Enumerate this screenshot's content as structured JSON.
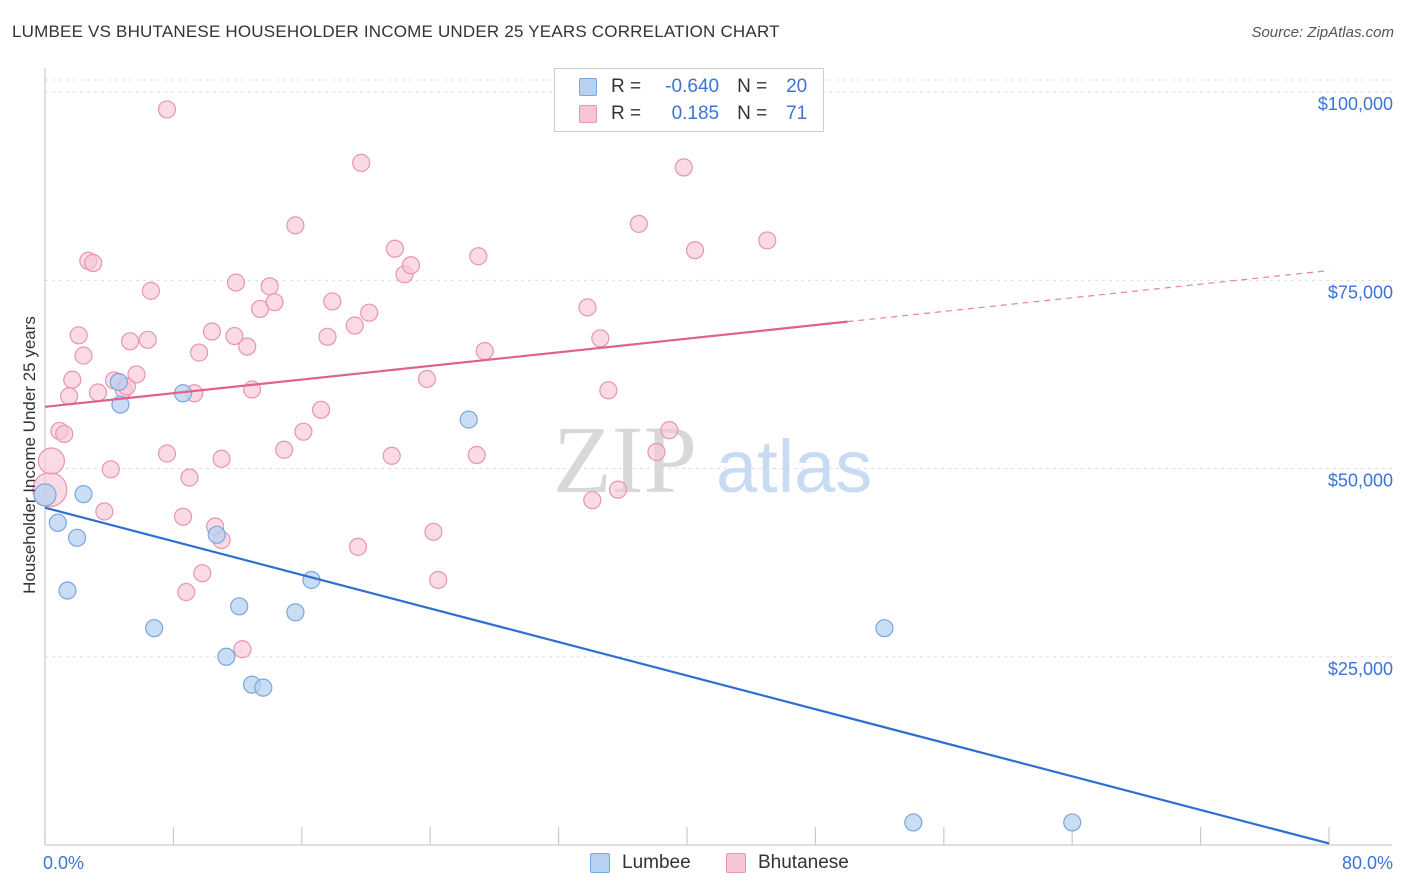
{
  "title": "LUMBEE VS BHUTANESE HOUSEHOLDER INCOME UNDER 25 YEARS CORRELATION CHART",
  "source": "Source: ZipAtlas.com",
  "watermark": {
    "zip": "ZIP",
    "atlas": "atlas"
  },
  "legend": {
    "r_label": "R =",
    "n_label": "N =",
    "rows": [
      {
        "series": "Lumbee",
        "r": "-0.640",
        "n": "20"
      },
      {
        "series": "Bhutanese",
        "r": "0.185",
        "n": "71"
      }
    ]
  },
  "colors": {
    "lumbee_fill": "#b7d1f2",
    "lumbee_stroke": "#7aa6e0",
    "lumbee_line": "#2f6fcf",
    "bhutanese_fill": "#f7c6d6",
    "bhutanese_stroke": "#e795b2",
    "bhutanese_line": "#e0608e",
    "axis_label": "#3b74d6",
    "grid": "#dddddd"
  },
  "chart_data": {
    "type": "scatter",
    "ylabel": "Householder Income Under 25 years",
    "xlim": [
      0,
      80
    ],
    "ylim": [
      0,
      104000
    ],
    "x_tick_labels": [
      "0.0%",
      "80.0%"
    ],
    "y_ticks": [
      25000,
      50000,
      75000,
      100000
    ],
    "y_tick_labels": [
      "$25,000",
      "$50,000",
      "$75,000",
      "$100,000"
    ],
    "grid": "horizontal dashed",
    "series": [
      {
        "name": "Lumbee",
        "points": [
          [
            0.0,
            46500
          ],
          [
            0.8,
            42800
          ],
          [
            1.4,
            33800
          ],
          [
            2.0,
            40800
          ],
          [
            2.4,
            46600
          ],
          [
            4.6,
            61500
          ],
          [
            4.7,
            58500
          ],
          [
            6.8,
            28800
          ],
          [
            8.6,
            60000
          ],
          [
            10.7,
            41200
          ],
          [
            11.3,
            25000
          ],
          [
            12.1,
            31700
          ],
          [
            12.9,
            21300
          ],
          [
            13.6,
            20900
          ],
          [
            15.6,
            30900
          ],
          [
            16.6,
            35200
          ],
          [
            26.4,
            56500
          ],
          [
            52.3,
            28800
          ],
          [
            54.1,
            3000
          ],
          [
            64.0,
            3000
          ]
        ],
        "trend": {
          "x": [
            0,
            80
          ],
          "y": [
            44800,
            200
          ]
        }
      },
      {
        "name": "Bhutanese",
        "points": [
          [
            0.3,
            47200
          ],
          [
            0.4,
            51000
          ],
          [
            0.9,
            55000
          ],
          [
            1.2,
            54600
          ],
          [
            1.5,
            59600
          ],
          [
            1.7,
            61800
          ],
          [
            2.1,
            67700
          ],
          [
            2.4,
            65000
          ],
          [
            2.7,
            77600
          ],
          [
            3.0,
            77300
          ],
          [
            3.3,
            60100
          ],
          [
            3.7,
            44300
          ],
          [
            4.1,
            49900
          ],
          [
            4.3,
            61700
          ],
          [
            4.9,
            60500
          ],
          [
            5.1,
            60900
          ],
          [
            5.3,
            66900
          ],
          [
            5.7,
            62500
          ],
          [
            6.4,
            67100
          ],
          [
            6.6,
            73600
          ],
          [
            7.6,
            97700
          ],
          [
            7.6,
            52000
          ],
          [
            8.6,
            43600
          ],
          [
            8.8,
            33600
          ],
          [
            9.0,
            48800
          ],
          [
            9.3,
            60000
          ],
          [
            9.6,
            65400
          ],
          [
            9.8,
            36100
          ],
          [
            10.4,
            68200
          ],
          [
            10.6,
            42300
          ],
          [
            11.0,
            51300
          ],
          [
            11.0,
            40500
          ],
          [
            11.8,
            67600
          ],
          [
            11.9,
            74700
          ],
          [
            12.3,
            26000
          ],
          [
            12.6,
            66200
          ],
          [
            12.9,
            60500
          ],
          [
            13.4,
            71200
          ],
          [
            14.0,
            74200
          ],
          [
            14.3,
            72100
          ],
          [
            14.9,
            52500
          ],
          [
            15.6,
            82300
          ],
          [
            16.1,
            54900
          ],
          [
            17.2,
            57800
          ],
          [
            17.6,
            67500
          ],
          [
            17.9,
            72200
          ],
          [
            19.3,
            69000
          ],
          [
            19.5,
            39600
          ],
          [
            19.7,
            90600
          ],
          [
            20.2,
            70700
          ],
          [
            21.6,
            51700
          ],
          [
            21.8,
            79200
          ],
          [
            22.4,
            75800
          ],
          [
            22.8,
            77000
          ],
          [
            23.8,
            61900
          ],
          [
            24.2,
            41600
          ],
          [
            24.5,
            35200
          ],
          [
            26.9,
            51800
          ],
          [
            27.0,
            78200
          ],
          [
            27.4,
            65600
          ],
          [
            33.8,
            71400
          ],
          [
            34.1,
            45800
          ],
          [
            34.6,
            67300
          ],
          [
            35.1,
            60400
          ],
          [
            35.7,
            47200
          ],
          [
            38.1,
            52200
          ],
          [
            38.9,
            55100
          ],
          [
            39.8,
            90000
          ],
          [
            40.5,
            79000
          ],
          [
            37.0,
            82500
          ],
          [
            45.0,
            80300
          ]
        ],
        "trend": {
          "x": [
            0,
            80
          ],
          "y": [
            58200,
            76300
          ],
          "solid_until_x": 50
        }
      }
    ]
  }
}
